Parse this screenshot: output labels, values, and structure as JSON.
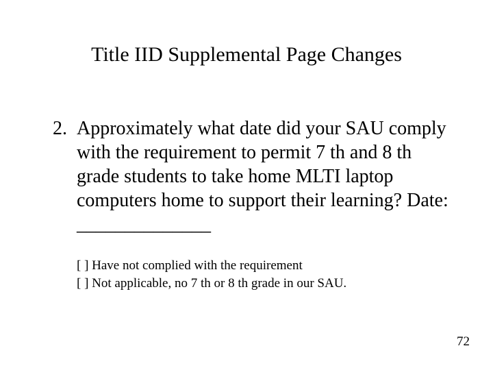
{
  "colors": {
    "background": "#ffffff",
    "text": "#000000"
  },
  "typography": {
    "family": "Times New Roman",
    "title_fontsize_pt": 30,
    "body_fontsize_pt": 28,
    "options_fontsize_pt": 19,
    "pagenum_fontsize_pt": 19
  },
  "title": "Title IID Supplemental Page Changes",
  "question": {
    "number": "2.",
    "text": "Approximately what date did your SAU comply with the requirement to permit 7 th and 8 th grade students to take home MLTI laptop computers home to support their learning?    Date: ______________"
  },
  "options": [
    "[   ]  Have not complied with the requirement",
    "[   ]  Not applicable, no 7 th or 8 th grade in our SAU."
  ],
  "page_number": "72"
}
